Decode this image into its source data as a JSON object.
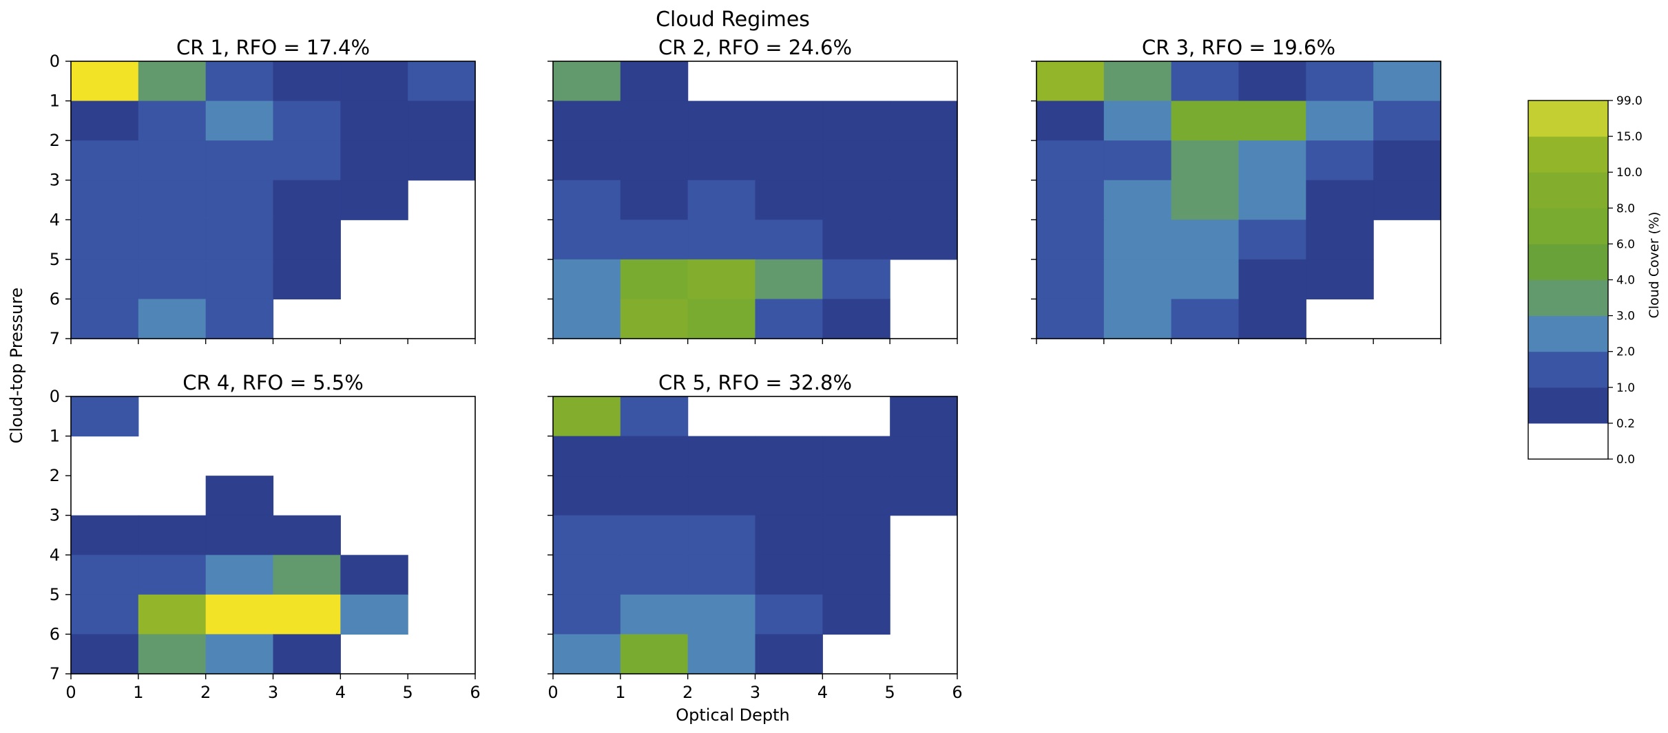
{
  "figure": {
    "title": "Cloud Regimes",
    "xlabel": "Optical Depth",
    "ylabel": "Cloud-top Pressure"
  },
  "colorbar": {
    "label": "Cloud Cover (%)",
    "ticks": [
      "0.0",
      "0.2",
      "1.0",
      "2.0",
      "3.0",
      "4.0",
      "6.0",
      "8.0",
      "10.0",
      "15.0",
      "99.0"
    ]
  },
  "chart_data": [
    {
      "type": "heatmap",
      "title": "CR 1, RFO = 17.4%",
      "xlabel": "",
      "ylabel": "Cloud-top Pressure",
      "x_ticks": [
        "0",
        "1",
        "2",
        "3",
        "4",
        "5",
        "6"
      ],
      "y_ticks": [
        "0",
        "1",
        "2",
        "3",
        "4",
        "5",
        "6",
        "7"
      ],
      "x_tick_labels_shown": false,
      "y_tick_labels_shown": true,
      "bin_class_grid": [
        [
          9,
          3,
          1,
          0,
          0,
          1
        ],
        [
          0,
          1,
          2,
          1,
          0,
          0
        ],
        [
          1,
          1,
          1,
          1,
          0,
          0
        ],
        [
          1,
          1,
          1,
          0,
          0,
          null
        ],
        [
          1,
          1,
          1,
          0,
          null,
          null
        ],
        [
          1,
          1,
          1,
          0,
          null,
          null
        ],
        [
          1,
          2,
          1,
          null,
          null,
          null
        ]
      ]
    },
    {
      "type": "heatmap",
      "title": "CR 2, RFO = 24.6%",
      "xlabel": "",
      "ylabel": "",
      "x_ticks": [
        "0",
        "1",
        "2",
        "3",
        "4",
        "5",
        "6"
      ],
      "y_ticks": [
        "0",
        "1",
        "2",
        "3",
        "4",
        "5",
        "6",
        "7"
      ],
      "x_tick_labels_shown": false,
      "y_tick_labels_shown": false,
      "bin_class_grid": [
        [
          3,
          0,
          null,
          null,
          null,
          null
        ],
        [
          0,
          0,
          0,
          0,
          0,
          0
        ],
        [
          0,
          0,
          0,
          0,
          0,
          0
        ],
        [
          1,
          0,
          1,
          0,
          0,
          0
        ],
        [
          1,
          1,
          1,
          1,
          0,
          0
        ],
        [
          2,
          5,
          6,
          3,
          1,
          null
        ],
        [
          2,
          6,
          5,
          1,
          0,
          null
        ]
      ]
    },
    {
      "type": "heatmap",
      "title": "CR 3, RFO = 19.6%",
      "xlabel": "",
      "ylabel": "",
      "x_ticks": [
        "0",
        "1",
        "2",
        "3",
        "4",
        "5",
        "6"
      ],
      "y_ticks": [
        "0",
        "1",
        "2",
        "3",
        "4",
        "5",
        "6",
        "7"
      ],
      "x_tick_labels_shown": false,
      "y_tick_labels_shown": false,
      "bin_class_grid": [
        [
          7,
          3,
          1,
          0,
          1,
          2
        ],
        [
          0,
          2,
          5,
          5,
          2,
          1
        ],
        [
          1,
          1,
          3,
          2,
          1,
          0
        ],
        [
          1,
          2,
          3,
          2,
          0,
          0
        ],
        [
          1,
          2,
          2,
          1,
          0,
          null
        ],
        [
          1,
          2,
          2,
          0,
          0,
          null
        ],
        [
          1,
          2,
          1,
          0,
          null,
          null
        ]
      ]
    },
    {
      "type": "heatmap",
      "title": "CR 4, RFO = 5.5%",
      "xlabel": "",
      "ylabel": "",
      "x_ticks": [
        "0",
        "1",
        "2",
        "3",
        "4",
        "5",
        "6"
      ],
      "y_ticks": [
        "0",
        "1",
        "2",
        "3",
        "4",
        "5",
        "6",
        "7"
      ],
      "x_tick_labels_shown": true,
      "y_tick_labels_shown": true,
      "bin_class_grid": [
        [
          1,
          null,
          null,
          null,
          null,
          null
        ],
        [
          null,
          null,
          null,
          null,
          null,
          null
        ],
        [
          null,
          null,
          0,
          null,
          null,
          null
        ],
        [
          0,
          0,
          0,
          0,
          null,
          null
        ],
        [
          1,
          1,
          2,
          3,
          0,
          null
        ],
        [
          1,
          7,
          9,
          9,
          2,
          null
        ],
        [
          0,
          3,
          2,
          0,
          null,
          null
        ]
      ]
    },
    {
      "type": "heatmap",
      "title": "CR 5, RFO = 32.8%",
      "xlabel": "Optical Depth",
      "ylabel": "",
      "x_ticks": [
        "0",
        "1",
        "2",
        "3",
        "4",
        "5",
        "6"
      ],
      "y_ticks": [
        "0",
        "1",
        "2",
        "3",
        "4",
        "5",
        "6",
        "7"
      ],
      "x_tick_labels_shown": true,
      "y_tick_labels_shown": false,
      "bin_class_grid": [
        [
          6,
          1,
          null,
          null,
          null,
          0
        ],
        [
          0,
          0,
          0,
          0,
          0,
          0
        ],
        [
          0,
          0,
          0,
          0,
          0,
          0
        ],
        [
          1,
          1,
          1,
          0,
          0,
          null
        ],
        [
          1,
          1,
          1,
          0,
          0,
          null
        ],
        [
          1,
          2,
          2,
          1,
          0,
          null
        ],
        [
          2,
          5,
          2,
          0,
          null,
          null
        ]
      ]
    }
  ],
  "colors": {
    "bins": [
      "#2e3f8e",
      "#3955a3",
      "#5085b8",
      "#629a6e",
      "#6aa23a",
      "#78ab30",
      "#83ad2c",
      "#92b52a",
      "#c4cf32",
      "#f3e326"
    ],
    "axis": "#000000",
    "background": "#ffffff"
  }
}
